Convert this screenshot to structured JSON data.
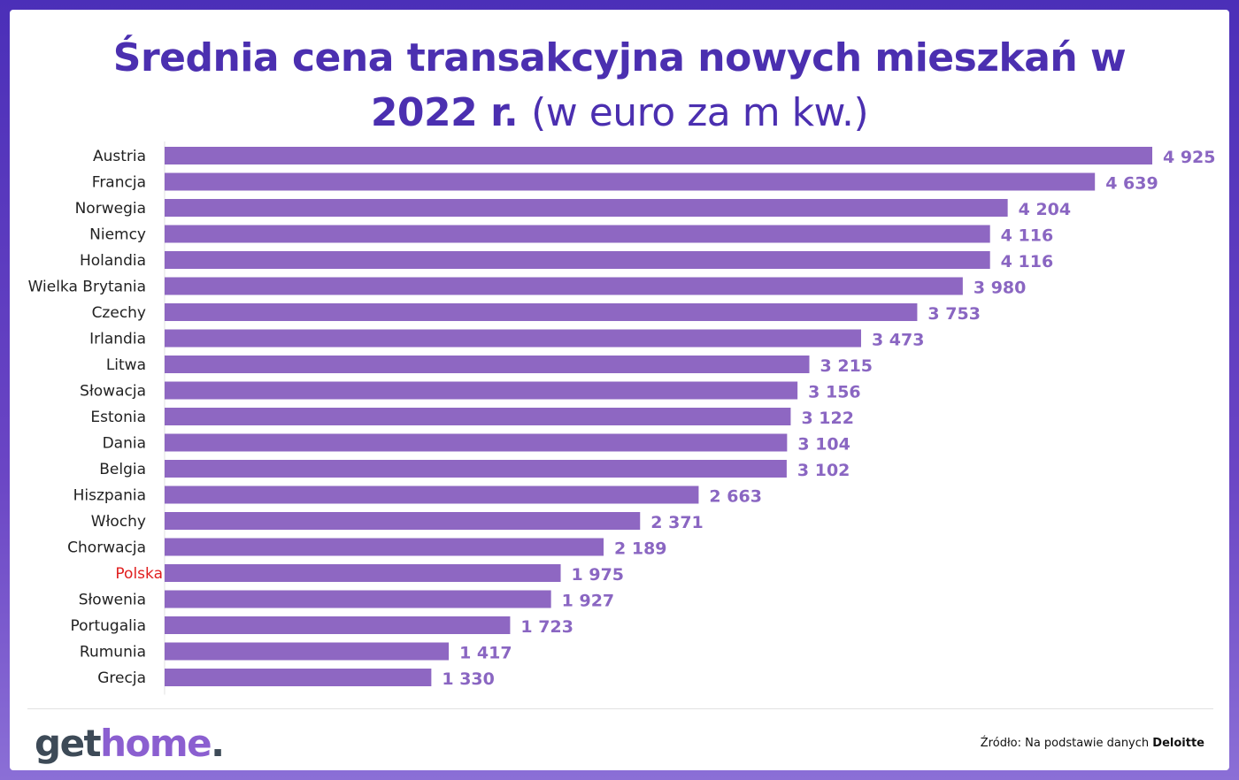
{
  "title": {
    "line1": "Średnia cena transakcyjna nowych mieszkań w",
    "line2_bold": "2022 r.",
    "line2_light": "(w euro za m kw.)"
  },
  "footer": {
    "logo_get": "get",
    "logo_home": "home",
    "logo_dot": ".",
    "source_prefix": "Źródło: Na podstawie danych",
    "source_brand": "Deloitte"
  },
  "colors": {
    "bar": "#8e67c2",
    "value_label": "#8a66c2",
    "highlight_label": "#e01e1e",
    "title": "#4b2fb0"
  },
  "chart_data": {
    "type": "bar",
    "orientation": "horizontal",
    "title": "Średnia cena transakcyjna nowych mieszkań w 2022 r. (w euro za m kw.)",
    "xlabel": "",
    "ylabel": "",
    "xlim": [
      0,
      4925
    ],
    "highlight": "Polska",
    "categories": [
      "Austria",
      "Francja",
      "Norwegia",
      "Niemcy",
      "Holandia",
      "Wielka Brytania",
      "Czechy",
      "Irlandia",
      "Litwa",
      "Słowacja",
      "Estonia",
      "Dania",
      "Belgia",
      "Hiszpania",
      "Włochy",
      "Chorwacja",
      "Polska",
      "Słowenia",
      "Portugalia",
      "Rumunia",
      "Grecja"
    ],
    "values": [
      4925,
      4639,
      4204,
      4116,
      4116,
      3980,
      3753,
      3473,
      3215,
      3156,
      3122,
      3104,
      3102,
      2663,
      2371,
      2189,
      1975,
      1927,
      1723,
      1417,
      1330
    ],
    "value_labels": [
      "4 925",
      "4 639",
      "4 204",
      "4 116",
      "4 116",
      "3 980",
      "3 753",
      "3 473",
      "3 215",
      "3 156",
      "3 122",
      "3 104",
      "3 102",
      "2 663",
      "2 371",
      "2 189",
      "1 975",
      "1 927",
      "1 723",
      "1 417",
      "1 330"
    ]
  }
}
